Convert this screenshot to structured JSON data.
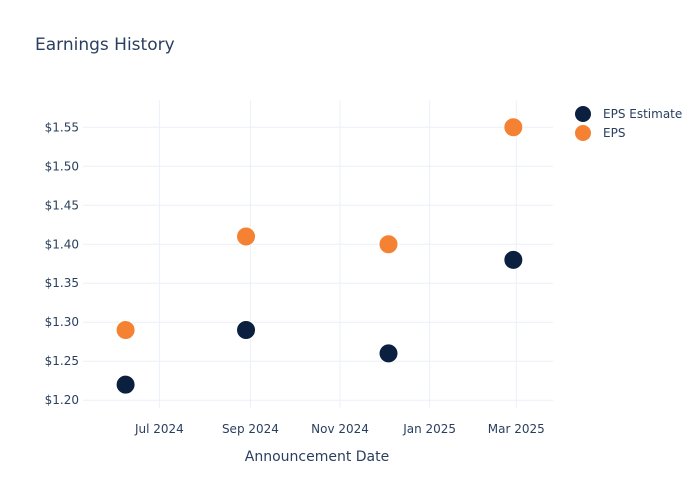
{
  "chart_data": {
    "type": "scatter",
    "title": "Earnings History",
    "xlabel": "Announcement Date",
    "ylabel": "",
    "x_type": "date",
    "xlim": [
      "2024-05-10",
      "2025-03-26"
    ],
    "ylim": [
      1.19,
      1.585
    ],
    "x_ticks": [
      {
        "value": "2024-07-01",
        "label": "Jul 2024"
      },
      {
        "value": "2024-09-01",
        "label": "Sep 2024"
      },
      {
        "value": "2024-11-01",
        "label": "Nov 2024"
      },
      {
        "value": "2025-01-01",
        "label": "Jan 2025"
      },
      {
        "value": "2025-03-01",
        "label": "Mar 2025"
      }
    ],
    "y_ticks": [
      {
        "value": 1.2,
        "label": "$1.20"
      },
      {
        "value": 1.25,
        "label": "$1.25"
      },
      {
        "value": 1.3,
        "label": "$1.30"
      },
      {
        "value": 1.35,
        "label": "$1.35"
      },
      {
        "value": 1.4,
        "label": "$1.40"
      },
      {
        "value": 1.45,
        "label": "$1.45"
      },
      {
        "value": 1.5,
        "label": "$1.50"
      },
      {
        "value": 1.55,
        "label": "$1.55"
      }
    ],
    "grid": true,
    "legend_position": "top-right",
    "series": [
      {
        "name": "EPS Estimate",
        "color": "#0b1f3f",
        "points": [
          {
            "x": "2024-06-08",
            "y": 1.22
          },
          {
            "x": "2024-08-29",
            "y": 1.29
          },
          {
            "x": "2024-12-04",
            "y": 1.26
          },
          {
            "x": "2025-02-27",
            "y": 1.38
          }
        ]
      },
      {
        "name": "EPS",
        "color": "#f58232",
        "points": [
          {
            "x": "2024-06-08",
            "y": 1.29
          },
          {
            "x": "2024-08-29",
            "y": 1.41
          },
          {
            "x": "2024-12-04",
            "y": 1.4
          },
          {
            "x": "2025-02-27",
            "y": 1.55
          }
        ]
      }
    ]
  }
}
